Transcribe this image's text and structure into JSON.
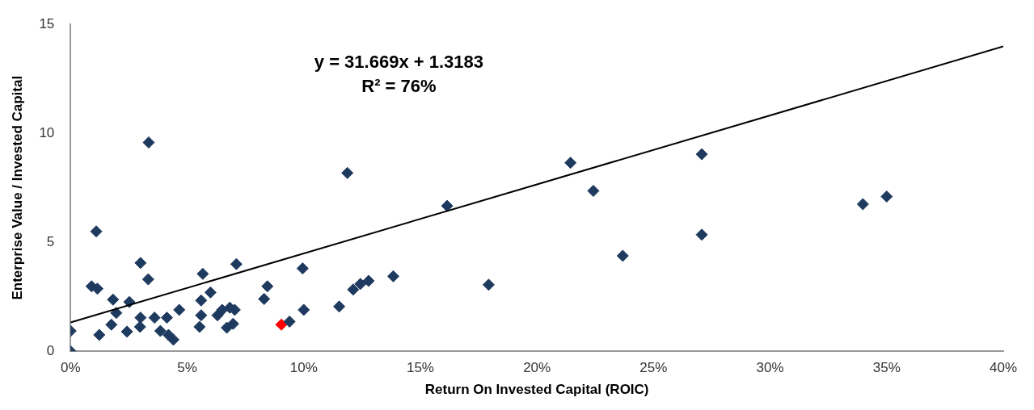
{
  "chart_data": {
    "type": "scatter",
    "xlabel": "Return On Invested Capital (ROIC)",
    "ylabel": "Enterprise Value / Invested Capital",
    "annotations": [
      "y = 31.669x + 1.3183",
      "R² = 76%"
    ],
    "xlim": [
      0,
      0.4
    ],
    "xticks": [
      {
        "value": 0,
        "label": "0%"
      },
      {
        "value": 0.05,
        "label": "5%"
      },
      {
        "value": 0.1,
        "label": "10%"
      },
      {
        "value": 0.15,
        "label": "15%"
      },
      {
        "value": 0.2,
        "label": "20%"
      },
      {
        "value": 0.25,
        "label": "25%"
      },
      {
        "value": 0.3,
        "label": "30%"
      },
      {
        "value": 0.35,
        "label": "35%"
      },
      {
        "value": 0.4,
        "label": "40%"
      }
    ],
    "ylim": [
      0,
      15
    ],
    "yticks": [
      0,
      5,
      10,
      15
    ],
    "grid": false,
    "legend": false,
    "marker": "diamond",
    "series": [
      {
        "type": "scatter",
        "color": "#1f3a5f",
        "x": [
          0,
          0,
          0.011,
          0.009,
          0.0115,
          0.0123,
          0.0182,
          0.0196,
          0.0175,
          0.0252,
          0.0242,
          0.03,
          0.0333,
          0.03,
          0.0298,
          0.036,
          0.0385,
          0.0413,
          0.042,
          0.0441,
          0.0466,
          0.0567,
          0.056,
          0.06,
          0.056,
          0.0553,
          0.063,
          0.065,
          0.0683,
          0.0704,
          0.067,
          0.0697,
          0.0711,
          0.0844,
          0.083,
          0.0995,
          0.1,
          0.0939,
          0.0335,
          0.1187,
          0.1152,
          0.1212,
          0.1243,
          0.1278,
          0.1384,
          0.1615,
          0.1793,
          0.2144,
          0.2242,
          0.2368,
          0.2707,
          0.2707,
          0.3398,
          0.35
        ],
        "values": [
          0.93,
          0,
          5.5,
          2.98,
          2.87,
          0.75,
          2.37,
          1.76,
          1.22,
          2.26,
          0.9,
          4.05,
          3.3,
          1.54,
          1.12,
          1.54,
          0.93,
          1.54,
          0.75,
          0.53,
          1.9,
          3.55,
          2.33,
          2.7,
          1.65,
          1.12,
          1.65,
          1.9,
          2,
          1.9,
          1.08,
          1.26,
          4,
          2.98,
          2.4,
          3.8,
          1.9,
          1.36,
          9.58,
          8.18,
          2.05,
          2.83,
          3.09,
          3.23,
          3.44,
          6.67,
          3.05,
          8.65,
          7.36,
          4.38,
          9.04,
          5.35,
          6.75,
          7.1
        ]
      },
      {
        "type": "scatter",
        "color": "#ff0000",
        "x": [
          0.0904
        ],
        "values": [
          1.22
        ]
      },
      {
        "type": "line",
        "color": "#000000",
        "x": [
          0,
          0.4
        ],
        "values": [
          1.32,
          13.99
        ],
        "marker": "none",
        "line_style": "solid"
      }
    ]
  }
}
